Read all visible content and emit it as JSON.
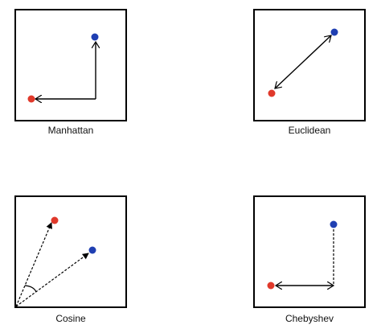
{
  "panels": [
    {
      "id": "manhattan",
      "caption": "Manhattan"
    },
    {
      "id": "euclidean",
      "caption": "Euclidean"
    },
    {
      "id": "cosine",
      "caption": "Cosine"
    },
    {
      "id": "chebyshev",
      "caption": "Chebyshev"
    }
  ],
  "colors": {
    "red_point": "#e0392b",
    "blue_point": "#1f3fb2",
    "line": "#000000"
  }
}
